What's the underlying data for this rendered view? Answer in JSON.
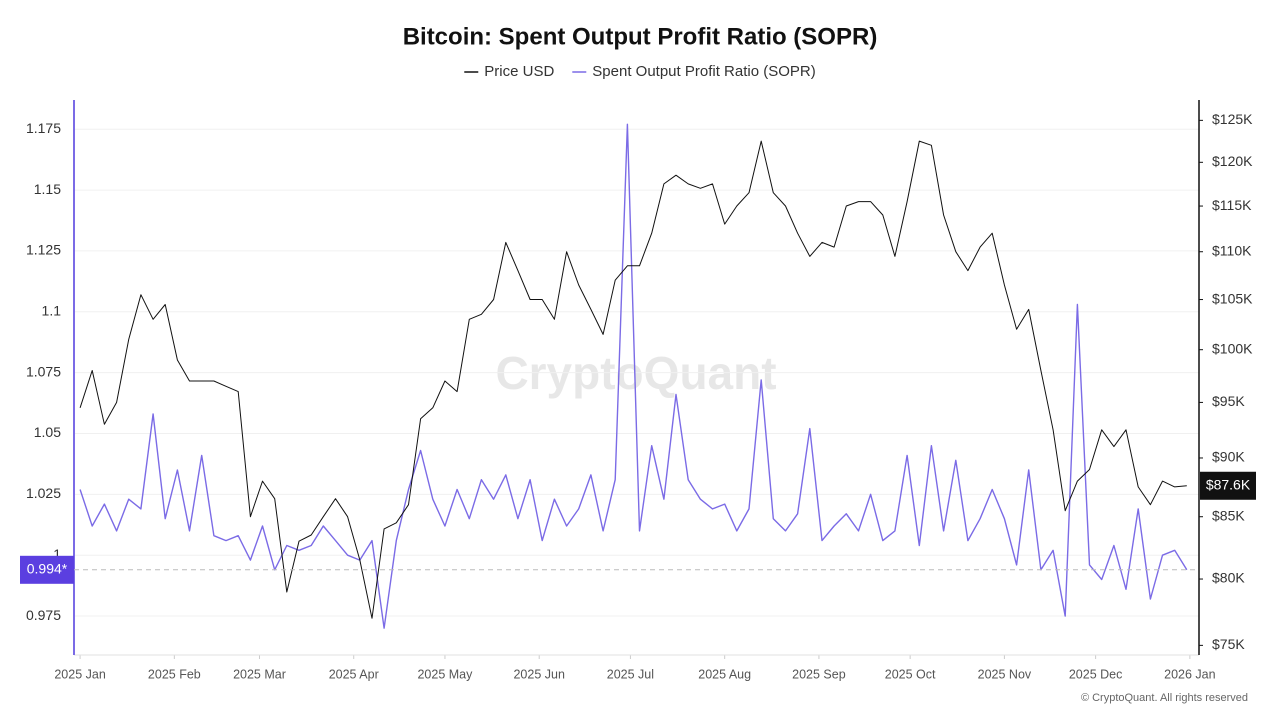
{
  "chart_data": {
    "type": "line",
    "title": "Bitcoin: Spent Output Profit Ratio (SOPR)",
    "watermark": "CryptoQuant",
    "copyright": "© CryptoQuant. All rights reserved",
    "x": [
      0,
      4,
      8,
      12,
      16,
      20,
      24,
      28,
      32,
      36,
      40,
      44,
      48,
      52,
      56,
      60,
      64,
      68,
      72,
      76,
      80,
      84,
      88,
      92,
      96,
      100,
      104,
      108,
      112,
      116,
      120,
      124,
      128,
      132,
      136,
      140,
      144,
      148,
      152,
      156,
      160,
      164,
      168,
      172,
      176,
      180,
      184,
      188,
      192,
      196,
      200,
      204,
      208,
      212,
      216,
      220,
      224,
      228,
      232,
      236,
      240,
      244,
      248,
      252,
      256,
      260,
      264,
      268,
      272,
      276,
      280,
      284,
      288,
      292,
      296,
      300,
      304,
      308,
      312,
      316,
      320,
      324,
      328,
      332,
      336,
      340,
      344,
      348,
      352,
      356,
      360,
      364
    ],
    "xlim": [
      -2,
      368
    ],
    "xticks": [
      {
        "value": 0,
        "label": "2025 Jan"
      },
      {
        "value": 31,
        "label": "2025 Feb"
      },
      {
        "value": 59,
        "label": "2025 Mar"
      },
      {
        "value": 90,
        "label": "2025 Apr"
      },
      {
        "value": 120,
        "label": "2025 May"
      },
      {
        "value": 151,
        "label": "2025 Jun"
      },
      {
        "value": 181,
        "label": "2025 Jul"
      },
      {
        "value": 212,
        "label": "2025 Aug"
      },
      {
        "value": 243,
        "label": "2025 Sep"
      },
      {
        "value": 273,
        "label": "2025 Oct"
      },
      {
        "value": 304,
        "label": "2025 Nov"
      },
      {
        "value": 334,
        "label": "2025 Dec"
      },
      {
        "value": 365,
        "label": "2026 Jan"
      }
    ],
    "ylim": [
      0.959,
      1.187
    ],
    "yticks": [
      0.975,
      1,
      1.025,
      1.05,
      1.075,
      1.1,
      1.125,
      1.15,
      1.175
    ],
    "y2lim": [
      74300,
      127500
    ],
    "y2scale": "log",
    "y2ticks": [
      {
        "value": 75000,
        "label": "$75K"
      },
      {
        "value": 80000,
        "label": "$80K"
      },
      {
        "value": 85000,
        "label": "$85K"
      },
      {
        "value": 90000,
        "label": "$90K"
      },
      {
        "value": 95000,
        "label": "$95K"
      },
      {
        "value": 100000,
        "label": "$100K"
      },
      {
        "value": 105000,
        "label": "$105K"
      },
      {
        "value": 110000,
        "label": "$110K"
      },
      {
        "value": 115000,
        "label": "$115K"
      },
      {
        "value": 120000,
        "label": "$120K"
      },
      {
        "value": 125000,
        "label": "$125K"
      }
    ],
    "grid": true,
    "series": [
      {
        "name": "Price USD",
        "color": "#111111",
        "axis": "y2",
        "values": [
          94500,
          98000,
          93000,
          95000,
          101000,
          105500,
          103000,
          104500,
          99000,
          97000,
          97000,
          97000,
          96500,
          96000,
          85000,
          88000,
          86500,
          79000,
          83000,
          83500,
          85000,
          86500,
          85000,
          81500,
          77000,
          84000,
          84500,
          86000,
          93500,
          94500,
          97000,
          96000,
          103000,
          103500,
          105000,
          111000,
          108000,
          105000,
          105000,
          103000,
          110000,
          106500,
          104000,
          101500,
          107000,
          108500,
          108500,
          112000,
          117500,
          118500,
          117500,
          117000,
          117500,
          113000,
          115000,
          116500,
          122500,
          116500,
          115000,
          112000,
          109500,
          111000,
          110500,
          115000,
          115500,
          115500,
          114000,
          109500,
          115500,
          122500,
          122000,
          114000,
          110000,
          108000,
          110500,
          112000,
          106500,
          102000,
          104000,
          98000,
          92500,
          85500,
          88000,
          89000,
          92500,
          91000,
          92500,
          87500,
          86000,
          88000,
          87500,
          87600
        ]
      },
      {
        "name": "Spent Output Profit Ratio (SOPR)",
        "color": "#7b6be6",
        "values": [
          1.027,
          1.012,
          1.021,
          1.01,
          1.023,
          1.019,
          1.058,
          1.015,
          1.035,
          1.01,
          1.041,
          1.008,
          1.006,
          1.008,
          0.998,
          1.012,
          0.994,
          1.004,
          1.002,
          1.004,
          1.012,
          1.006,
          1.0,
          0.998,
          1.006,
          0.97,
          1.006,
          1.027,
          1.043,
          1.023,
          1.012,
          1.027,
          1.015,
          1.031,
          1.023,
          1.033,
          1.015,
          1.031,
          1.006,
          1.023,
          1.012,
          1.019,
          1.033,
          1.01,
          1.031,
          1.177,
          1.01,
          1.045,
          1.023,
          1.066,
          1.031,
          1.023,
          1.019,
          1.021,
          1.01,
          1.019,
          1.072,
          1.015,
          1.01,
          1.017,
          1.052,
          1.006,
          1.012,
          1.017,
          1.01,
          1.025,
          1.006,
          1.01,
          1.041,
          1.004,
          1.045,
          1.01,
          1.039,
          1.006,
          1.015,
          1.027,
          1.015,
          0.996,
          1.035,
          0.994,
          1.002,
          0.975,
          1.103,
          0.996,
          0.99,
          1.004,
          0.986,
          1.019,
          0.982,
          1.0,
          1.002,
          0.994
        ]
      }
    ],
    "markers": [
      {
        "axis": "y",
        "value": 0.994,
        "label": "0.994*",
        "color": "#5b3fe0"
      },
      {
        "axis": "y2",
        "value": 87600,
        "label": "$87.6K",
        "color": "#111111"
      }
    ]
  }
}
